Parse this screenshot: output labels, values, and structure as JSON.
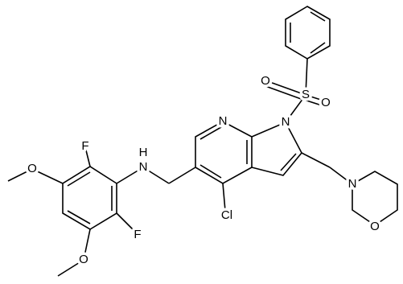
{
  "atoms": [
    {
      "label": "O"
    },
    {
      "label": "O"
    },
    {
      "label": "S"
    },
    {
      "label": "N"
    },
    {
      "label": "N"
    },
    {
      "label": "Cl"
    },
    {
      "label": "N"
    },
    {
      "label": "O"
    },
    {
      "label": "N"
    },
    {
      "label": "H"
    },
    {
      "label": "F"
    },
    {
      "label": "F"
    },
    {
      "label": "O"
    },
    {
      "label": "O"
    }
  ]
}
